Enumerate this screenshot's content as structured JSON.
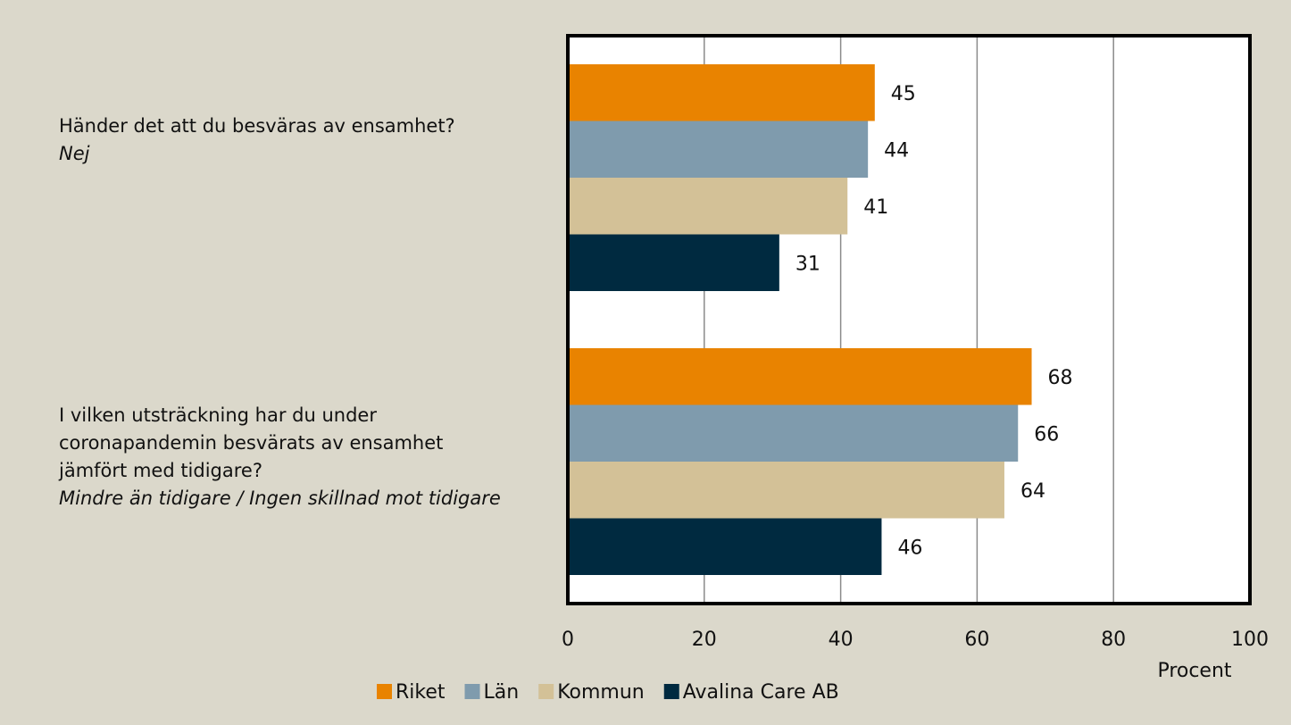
{
  "chart_data": {
    "type": "hbar",
    "categories": [
      "Händer det att du besväras av ensamhet?",
      "I vilken utsträckning har du under coronapandemin besvärats av ensamhet jämfört med tidigare?"
    ],
    "category_notes": [
      "Nej",
      "Mindre än tidigare / Ingen skillnad mot tidigare"
    ],
    "series": [
      {
        "name": "Riket",
        "color": "#e98300",
        "values": [
          45,
          68
        ]
      },
      {
        "name": "Län",
        "color": "#7f9bad",
        "values": [
          44,
          66
        ]
      },
      {
        "name": "Kommun",
        "color": "#d3c197",
        "values": [
          41,
          64
        ]
      },
      {
        "name": "Avalina Care AB",
        "color": "#002a40",
        "values": [
          31,
          46
        ]
      }
    ],
    "xlabel": "Procent",
    "xlim": [
      0,
      100
    ],
    "xticks": [
      0,
      20,
      40,
      60,
      80,
      100
    ],
    "grid": true,
    "legend": "bottom"
  }
}
